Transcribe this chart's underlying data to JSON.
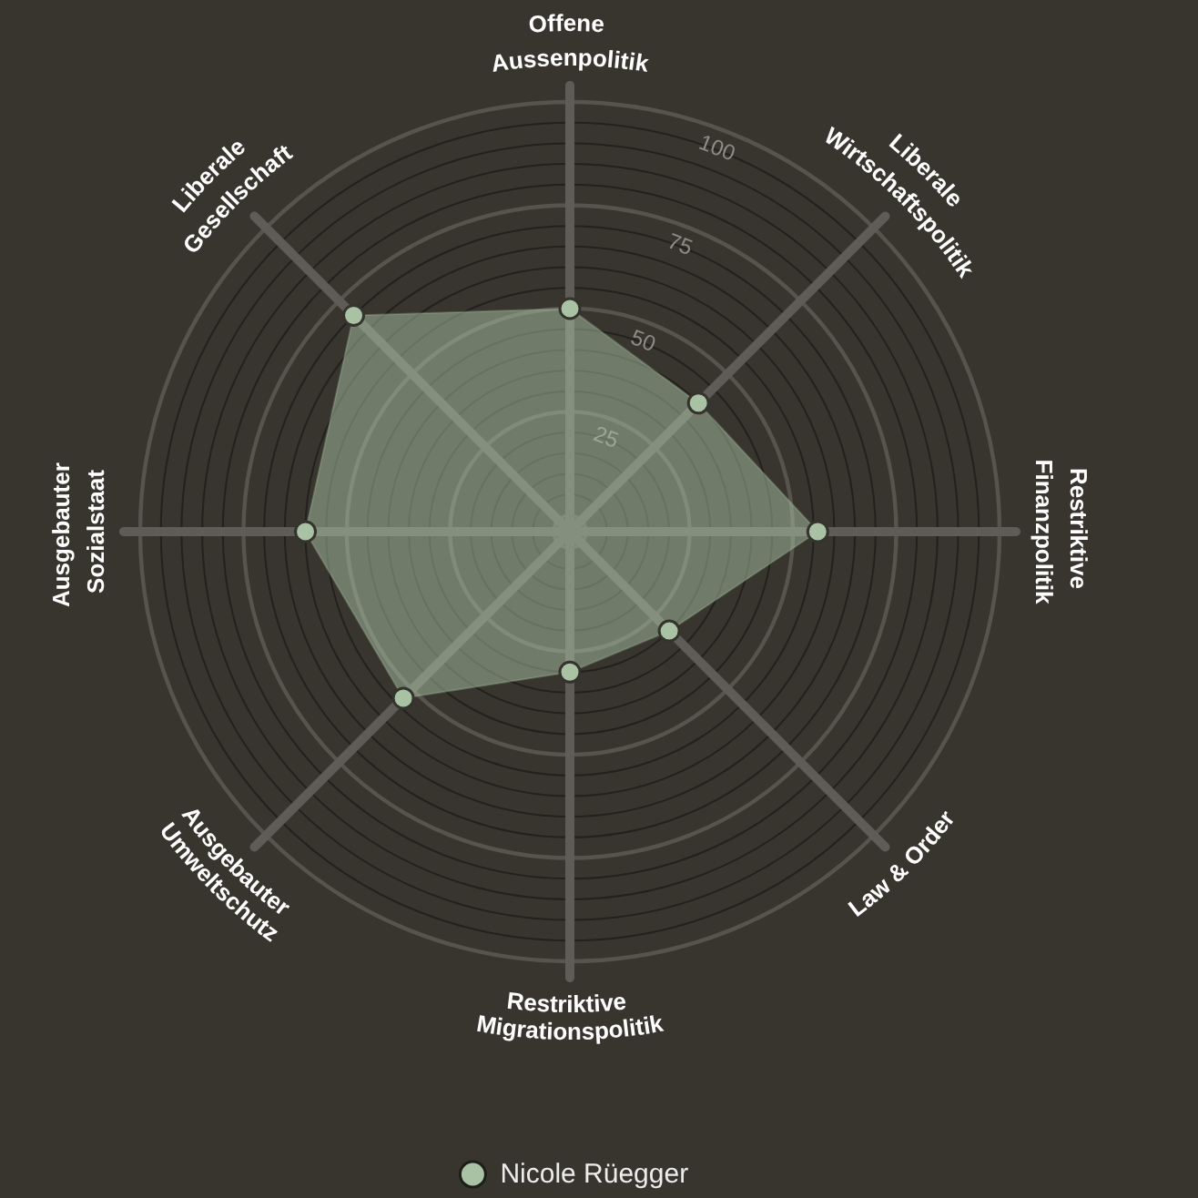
{
  "chart_data": {
    "type": "radar",
    "categories": [
      "Offene Aussenpolitik",
      "Liberale Wirtschaftspolitik",
      "Restriktive Finanzpolitik",
      "Law & Order",
      "Restriktive Migrationspolitik",
      "Ausgebauter Umweltschutz",
      "Ausgebauter Sozialstaat",
      "Liberale Gesellschaft"
    ],
    "series": [
      {
        "name": "Nicole Rüegger",
        "color": "#a9c2a4",
        "values": [
          50,
          40,
          56,
          30,
          30,
          53,
          60,
          70
        ]
      }
    ],
    "ylim": [
      -4,
      100
    ],
    "yticks": [
      25,
      50,
      75,
      100
    ],
    "grid": true,
    "legend": "bottom",
    "marker": "circle"
  }
}
